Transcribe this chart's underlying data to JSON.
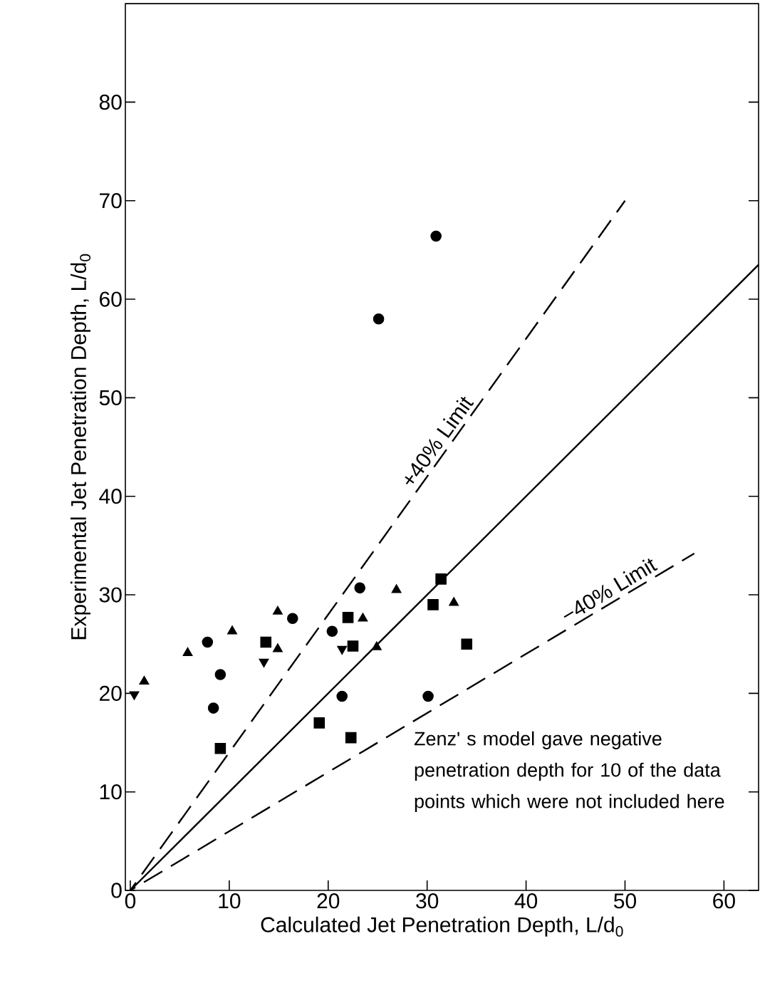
{
  "chart_data": {
    "type": "scatter",
    "xlabel": "Calculated Jet Penetration Depth, L/d$_{0}$",
    "ylabel": "Experimental Jet Penetration Depth, L/d$_{0}$",
    "xlim": [
      -0.5,
      63.5
    ],
    "ylim": [
      0,
      90
    ],
    "xticks": [
      0,
      10,
      20,
      30,
      40,
      50,
      60
    ],
    "yticks": [
      0,
      10,
      20,
      30,
      40,
      50,
      60,
      70,
      80
    ],
    "grid": false,
    "series": [
      {
        "marker": "circle",
        "color": "#000000",
        "x": [
          25.1,
          30.9,
          7.8,
          9.1,
          8.4,
          16.4,
          20.4,
          23.2,
          21.4,
          30.1
        ],
        "values": [
          58.0,
          66.4,
          25.2,
          21.9,
          18.5,
          27.6,
          26.3,
          30.7,
          19.7,
          19.7
        ]
      },
      {
        "marker": "square",
        "color": "#000000",
        "x": [
          9.1,
          13.7,
          19.1,
          22.0,
          22.5,
          22.3,
          30.6,
          31.4,
          34.0
        ],
        "values": [
          14.4,
          25.2,
          17.0,
          27.7,
          24.8,
          15.5,
          29.0,
          31.6,
          25.0
        ]
      },
      {
        "marker": "triangle",
        "color": "#000000",
        "x": [
          1.4,
          5.8,
          10.3,
          14.9,
          14.9,
          23.5,
          24.9,
          26.9,
          32.7
        ],
        "values": [
          21.2,
          24.1,
          26.3,
          28.3,
          24.5,
          27.6,
          24.7,
          30.5,
          29.2
        ]
      },
      {
        "marker": "triangle_down",
        "color": "#000000",
        "x": [
          0.4,
          13.5,
          21.4
        ],
        "values": [
          19.9,
          23.2,
          24.5
        ]
      },
      {
        "type": "line",
        "marker": "none",
        "line_style": "solid",
        "color": "#000000",
        "x": [
          0,
          63.5
        ],
        "values": [
          0,
          63.5
        ]
      },
      {
        "type": "line",
        "marker": "none",
        "line_style": "dashed",
        "color": "#000000",
        "x": [
          0,
          50
        ],
        "values": [
          0,
          70
        ]
      },
      {
        "type": "line",
        "marker": "none",
        "line_style": "dashed",
        "color": "#000000",
        "x": [
          0,
          57
        ],
        "values": [
          0,
          34.2
        ]
      }
    ],
    "annotations": [
      {
        "text": "+40% Limit",
        "x": 32,
        "y": 44.8
      },
      {
        "text": "−40% Limit",
        "x": 49,
        "y": 29.4
      },
      "Zenz' s model gave negative penetration depth for 10 of the data points which were not included here"
    ]
  }
}
